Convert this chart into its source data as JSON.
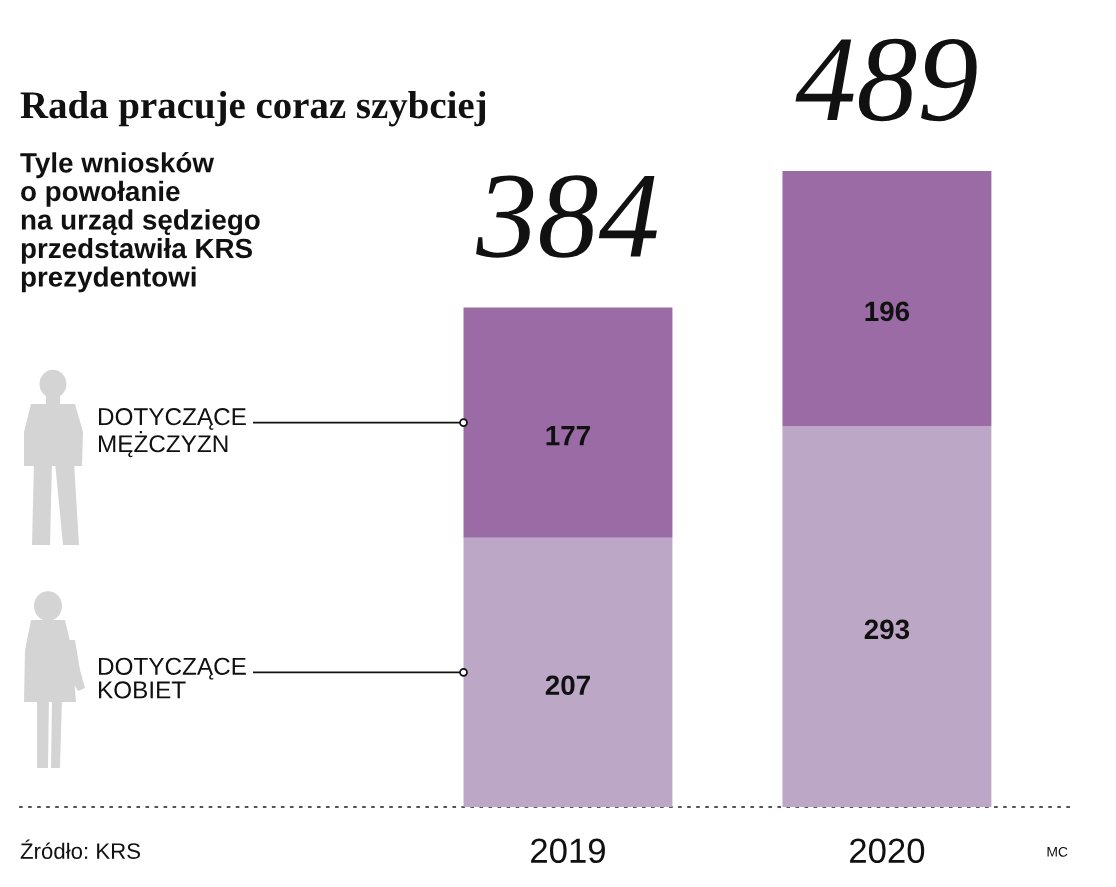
{
  "chart_data": {
    "type": "bar",
    "stacked": true,
    "title": "Rada pracuje coraz szybciej",
    "subtitle": "Tyle wniosków\no powołanie\nna urząd sędziego\nprzedstawiła KRS\nprezydentowi",
    "categories": [
      "2019",
      "2020"
    ],
    "series": [
      {
        "name": "DOTYCZĄCE\nKOBIET",
        "color": "#bca8c6",
        "values": [
          207,
          293
        ]
      },
      {
        "name": "DOTYCZĄCE\nMĘŻCZYZN",
        "color": "#9a6ba5",
        "values": [
          177,
          196
        ]
      }
    ],
    "totals": [
      "384",
      "489"
    ],
    "data_labels": true,
    "legend": false,
    "grid": false,
    "annotations": [
      "Źródło: KRS",
      "MC"
    ]
  }
}
